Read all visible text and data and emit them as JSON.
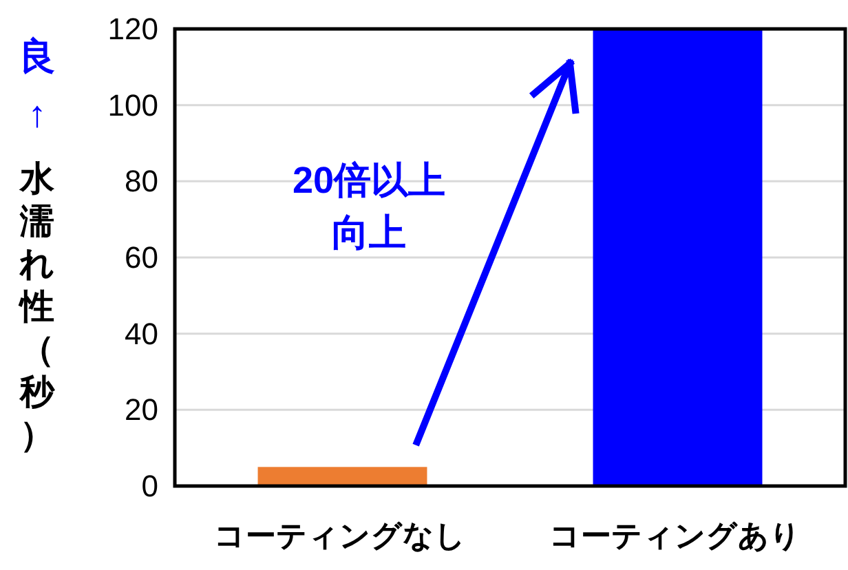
{
  "chart_data": {
    "type": "bar",
    "categories": [
      "コーティングなし",
      "コーティングあり"
    ],
    "values": [
      5,
      120
    ],
    "colors": [
      "#ed7d31",
      "#0000ff"
    ],
    "ylabel": "水濡れ性（秒）",
    "annotations": [
      "良↑",
      "20倍以上向上"
    ],
    "ylim": [
      0,
      120
    ],
    "yticks": [
      0,
      20,
      40,
      60,
      80,
      100,
      120
    ],
    "grid": "y"
  }
}
